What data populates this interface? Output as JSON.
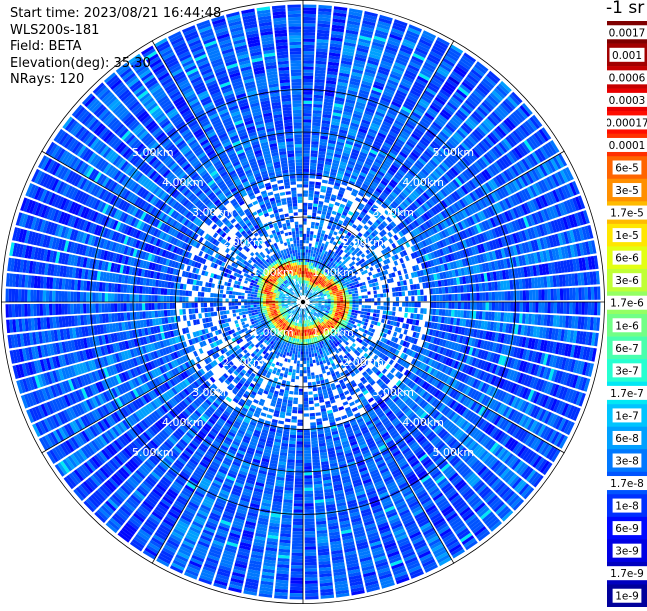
{
  "info": {
    "start_time": "Start time: 2023/08/21 16:44:48",
    "instrument": "WLS200s-181",
    "field": "Field: BETA",
    "elevation": "Elevation(deg): 35.30",
    "nrays": "NRays: 120"
  },
  "colorbar_unit": "-1 sr",
  "chart_data": {
    "type": "heatmap",
    "projection": "polar (PPI scan)",
    "field": "BETA",
    "elevation_deg": 35.3,
    "n_rays": 120,
    "range_rings_km": [
      1.0,
      2.0,
      3.0,
      4.0,
      5.0
    ],
    "range_ring_labels": [
      "1.00km",
      "2.00km",
      "3.00km",
      "4.00km",
      "5.00km"
    ],
    "max_range_km": 7.0,
    "colorbar": {
      "scale": "log",
      "ticks": [
        "0.0017",
        "0.001",
        "0.0006",
        "0.0003",
        "0.00017",
        "0.0001",
        "6e-5",
        "3e-5",
        "1.7e-5",
        "1e-5",
        "6e-6",
        "3e-6",
        "1.7e-6",
        "1e-6",
        "6e-7",
        "3e-7",
        "1.7e-7",
        "1e-7",
        "6e-8",
        "3e-8",
        "1.7e-8",
        "1e-8",
        "6e-9",
        "3e-9",
        "1.7e-9",
        "1e-9"
      ],
      "colors": [
        "#7f0000",
        "#a20000",
        "#c60000",
        "#e90000",
        "#ff0d00",
        "#ff3000",
        "#ff6400",
        "#ff8f00",
        "#ffba00",
        "#ffe600",
        "#e3ff13",
        "#c0ff36",
        "#94ff63",
        "#71ff86",
        "#49ffad",
        "#26ffd1",
        "#02e8f4",
        "#00c4ff",
        "#00a0ff",
        "#0078ff",
        "#0054ff",
        "#0030ff",
        "#0008ff",
        "#0000e3",
        "#0000bf",
        "#00009b"
      ]
    },
    "feature": "enhanced backscatter ring (about 1e-4 to 1e-3) at roughly 0.6-1.0 km range around the instrument",
    "background_level": "about 1e-8 to 1e-7"
  }
}
